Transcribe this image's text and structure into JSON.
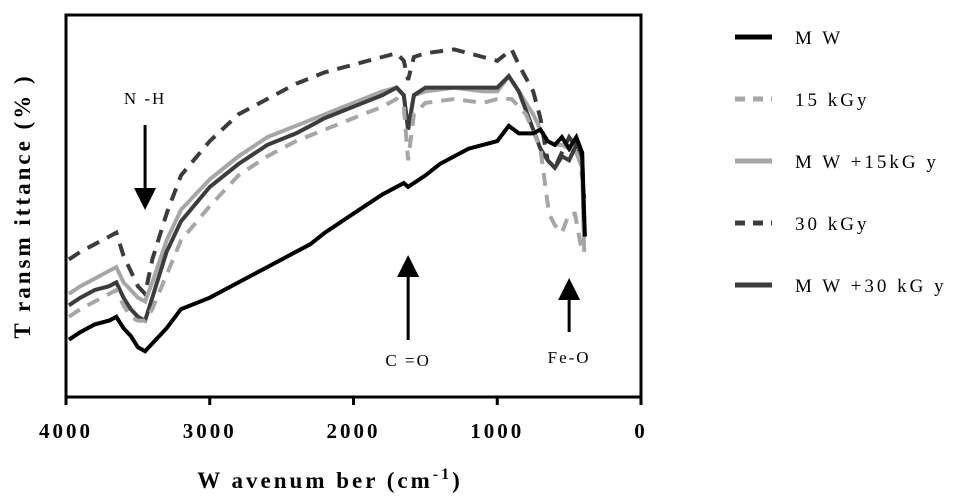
{
  "chart_data": {
    "type": "line",
    "title": "",
    "xlabel": "W avenum ber (cm",
    "xlabel_sup": "-1",
    "xlabel_close": ")",
    "ylabel": "T ransm ittance (% )",
    "xlim": [
      4000,
      0
    ],
    "ylim": [
      0,
      100
    ],
    "x_reversed": true,
    "y_tick_labels_shown": false,
    "grid": false,
    "legend_position": "right",
    "xticks": [
      {
        "value": 4000,
        "label": "4000"
      },
      {
        "value": 3000,
        "label": "3000"
      },
      {
        "value": 2000,
        "label": "2000"
      },
      {
        "value": 1000,
        "label": "1000"
      },
      {
        "value": 0,
        "label": "0"
      }
    ],
    "annotations": [
      {
        "label": "N -H",
        "x": 3450,
        "arrow": "down"
      },
      {
        "label": "C =O",
        "x": 1620,
        "arrow": "up"
      },
      {
        "label": "Fe-O",
        "x": 500,
        "arrow": "up"
      }
    ],
    "series": [
      {
        "name": "M W",
        "color": "#000000",
        "dash": "solid",
        "points": [
          [
            3980,
            15
          ],
          [
            3900,
            17
          ],
          [
            3800,
            19
          ],
          [
            3700,
            20
          ],
          [
            3650,
            21
          ],
          [
            3600,
            18
          ],
          [
            3550,
            16
          ],
          [
            3500,
            13
          ],
          [
            3450,
            12
          ],
          [
            3400,
            14
          ],
          [
            3300,
            18
          ],
          [
            3200,
            23
          ],
          [
            3000,
            26
          ],
          [
            2800,
            30
          ],
          [
            2600,
            34
          ],
          [
            2400,
            38
          ],
          [
            2300,
            40
          ],
          [
            2200,
            43
          ],
          [
            2000,
            48
          ],
          [
            1800,
            53
          ],
          [
            1650,
            56
          ],
          [
            1620,
            55
          ],
          [
            1500,
            58
          ],
          [
            1400,
            61
          ],
          [
            1200,
            65
          ],
          [
            1000,
            67
          ],
          [
            920,
            71
          ],
          [
            850,
            69
          ],
          [
            750,
            69
          ],
          [
            700,
            70
          ],
          [
            650,
            67
          ],
          [
            600,
            66
          ],
          [
            550,
            68
          ],
          [
            500,
            65
          ],
          [
            450,
            68
          ],
          [
            410,
            64
          ],
          [
            390,
            42
          ]
        ]
      },
      {
        "name": "15 kGy",
        "color": "#a6a6a6",
        "dash": "dashed",
        "points": [
          [
            3980,
            21
          ],
          [
            3900,
            23
          ],
          [
            3800,
            25
          ],
          [
            3700,
            27
          ],
          [
            3650,
            28
          ],
          [
            3600,
            24
          ],
          [
            3550,
            21
          ],
          [
            3500,
            20
          ],
          [
            3450,
            20
          ],
          [
            3400,
            23
          ],
          [
            3300,
            32
          ],
          [
            3200,
            41
          ],
          [
            3000,
            50
          ],
          [
            2800,
            58
          ],
          [
            2600,
            63
          ],
          [
            2400,
            67
          ],
          [
            2200,
            70
          ],
          [
            2000,
            73
          ],
          [
            1800,
            76
          ],
          [
            1700,
            78
          ],
          [
            1650,
            76
          ],
          [
            1620,
            62
          ],
          [
            1580,
            74
          ],
          [
            1500,
            77
          ],
          [
            1300,
            78
          ],
          [
            1100,
            77
          ],
          [
            1000,
            78
          ],
          [
            900,
            78
          ],
          [
            800,
            74
          ],
          [
            700,
            65
          ],
          [
            640,
            48
          ],
          [
            600,
            45
          ],
          [
            550,
            43
          ],
          [
            500,
            48
          ],
          [
            460,
            48
          ],
          [
            420,
            40
          ],
          [
            395,
            38
          ]
        ]
      },
      {
        "name": "M W +15kG y",
        "color": "#a6a6a6",
        "dash": "solid",
        "points": [
          [
            3980,
            27
          ],
          [
            3900,
            29
          ],
          [
            3800,
            31
          ],
          [
            3700,
            33
          ],
          [
            3650,
            34
          ],
          [
            3600,
            30
          ],
          [
            3550,
            28
          ],
          [
            3500,
            26
          ],
          [
            3450,
            25
          ],
          [
            3400,
            30
          ],
          [
            3300,
            41
          ],
          [
            3200,
            49
          ],
          [
            3000,
            57
          ],
          [
            2800,
            63
          ],
          [
            2600,
            68
          ],
          [
            2400,
            71
          ],
          [
            2200,
            74
          ],
          [
            2000,
            77
          ],
          [
            1800,
            80
          ],
          [
            1700,
            81
          ],
          [
            1650,
            79
          ],
          [
            1620,
            70
          ],
          [
            1580,
            79
          ],
          [
            1500,
            80
          ],
          [
            1300,
            81
          ],
          [
            1100,
            80
          ],
          [
            1000,
            80
          ],
          [
            920,
            84
          ],
          [
            850,
            80
          ],
          [
            750,
            74
          ],
          [
            700,
            70
          ],
          [
            650,
            67
          ],
          [
            600,
            66
          ],
          [
            550,
            66
          ],
          [
            500,
            65
          ],
          [
            450,
            64
          ],
          [
            410,
            60
          ],
          [
            395,
            38
          ]
        ]
      },
      {
        "name": "30 kGy",
        "color": "#3c3c3c",
        "dash": "dashed",
        "points": [
          [
            3980,
            36
          ],
          [
            3900,
            38
          ],
          [
            3800,
            40
          ],
          [
            3700,
            42
          ],
          [
            3650,
            43
          ],
          [
            3600,
            37
          ],
          [
            3550,
            33
          ],
          [
            3500,
            29
          ],
          [
            3450,
            27
          ],
          [
            3400,
            36
          ],
          [
            3300,
            48
          ],
          [
            3200,
            58
          ],
          [
            3000,
            67
          ],
          [
            2800,
            74
          ],
          [
            2600,
            78
          ],
          [
            2400,
            82
          ],
          [
            2200,
            85
          ],
          [
            2000,
            87
          ],
          [
            1800,
            89
          ],
          [
            1700,
            90
          ],
          [
            1650,
            88
          ],
          [
            1620,
            83
          ],
          [
            1580,
            89
          ],
          [
            1500,
            90
          ],
          [
            1300,
            91
          ],
          [
            1100,
            89
          ],
          [
            1000,
            88
          ],
          [
            900,
            91
          ],
          [
            850,
            87
          ],
          [
            750,
            80
          ],
          [
            700,
            73
          ],
          [
            650,
            62
          ],
          [
            600,
            60
          ],
          [
            550,
            64
          ],
          [
            500,
            68
          ],
          [
            460,
            66
          ],
          [
            420,
            62
          ],
          [
            395,
            52
          ]
        ]
      },
      {
        "name": "M W +30 kG y",
        "color": "#3c3c3c",
        "dash": "solid",
        "points": [
          [
            3980,
            24
          ],
          [
            3900,
            26
          ],
          [
            3800,
            28
          ],
          [
            3700,
            29
          ],
          [
            3650,
            30
          ],
          [
            3600,
            26
          ],
          [
            3550,
            23
          ],
          [
            3500,
            21
          ],
          [
            3450,
            20
          ],
          [
            3400,
            26
          ],
          [
            3300,
            38
          ],
          [
            3200,
            46
          ],
          [
            3000,
            55
          ],
          [
            2800,
            61
          ],
          [
            2600,
            66
          ],
          [
            2400,
            69
          ],
          [
            2300,
            71
          ],
          [
            2200,
            73
          ],
          [
            2000,
            76
          ],
          [
            1800,
            79
          ],
          [
            1700,
            81
          ],
          [
            1650,
            79
          ],
          [
            1620,
            70
          ],
          [
            1580,
            79
          ],
          [
            1500,
            81
          ],
          [
            1300,
            81
          ],
          [
            1100,
            81
          ],
          [
            1000,
            81
          ],
          [
            920,
            84
          ],
          [
            850,
            80
          ],
          [
            750,
            70
          ],
          [
            700,
            65
          ],
          [
            650,
            62
          ],
          [
            600,
            60
          ],
          [
            550,
            63
          ],
          [
            500,
            62
          ],
          [
            450,
            66
          ],
          [
            410,
            64
          ],
          [
            395,
            46
          ]
        ]
      }
    ]
  }
}
